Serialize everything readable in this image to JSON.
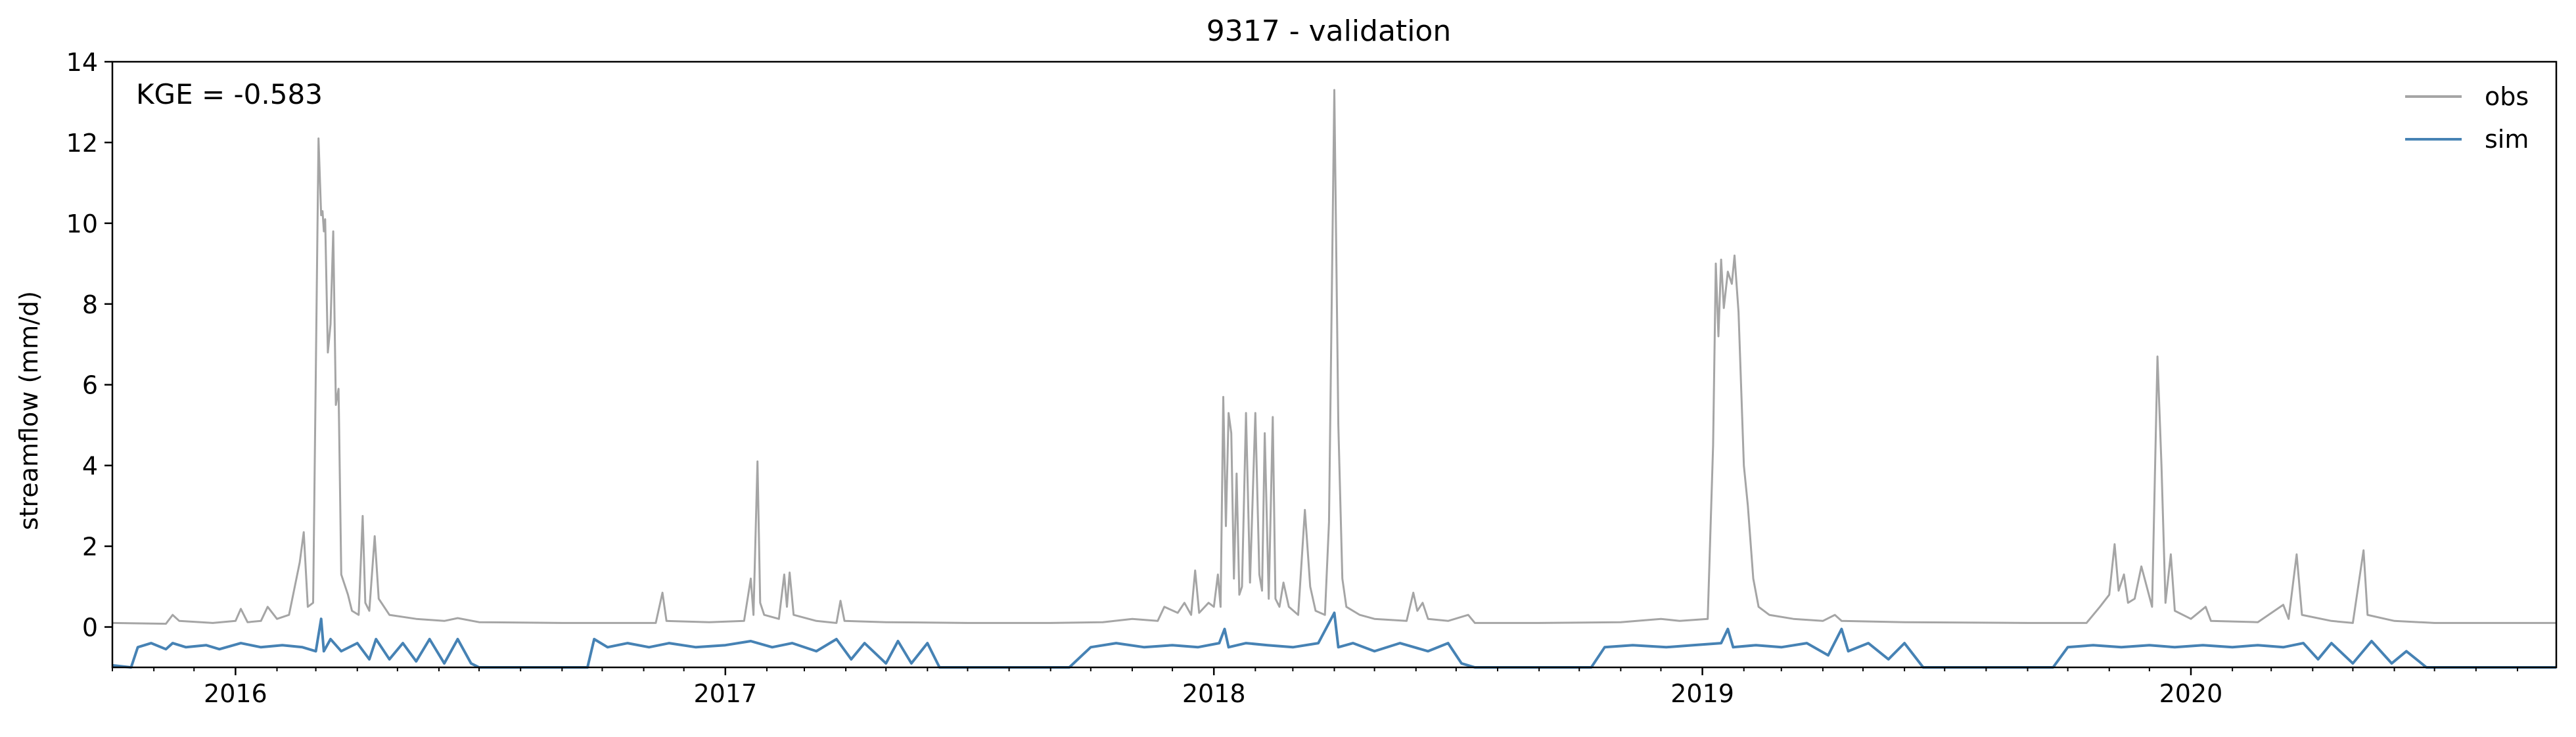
{
  "chart_data": {
    "type": "line",
    "title": "9317 - validation",
    "xlabel": "",
    "ylabel": "streamflow (mm/d)",
    "annotation": "KGE = -0.583",
    "xlim": [
      "2015-10-01",
      "2020-09-30"
    ],
    "ylim": [
      -1.0,
      14.0
    ],
    "x_ticks": [
      "2016",
      "2017",
      "2018",
      "2019",
      "2020"
    ],
    "y_ticks": [
      0,
      2,
      4,
      6,
      8,
      10,
      12,
      14
    ],
    "y_tick_labels": [
      "0",
      "2",
      "4",
      "6",
      "8",
      "10",
      "12",
      "14"
    ],
    "legend": {
      "location": "top-right"
    },
    "grid": false,
    "series": [
      {
        "name": "obs",
        "color": "#a5a5a5",
        "points": [
          [
            "2015-10-01",
            0.1
          ],
          [
            "2015-11-10",
            0.08
          ],
          [
            "2015-11-15",
            0.3
          ],
          [
            "2015-11-20",
            0.15
          ],
          [
            "2015-12-15",
            0.1
          ],
          [
            "2016-01-01",
            0.15
          ],
          [
            "2016-01-05",
            0.45
          ],
          [
            "2016-01-10",
            0.12
          ],
          [
            "2016-01-20",
            0.15
          ],
          [
            "2016-01-25",
            0.5
          ],
          [
            "2016-02-01",
            0.2
          ],
          [
            "2016-02-10",
            0.3
          ],
          [
            "2016-02-18",
            1.6
          ],
          [
            "2016-02-21",
            2.35
          ],
          [
            "2016-02-24",
            0.5
          ],
          [
            "2016-02-28",
            0.6
          ],
          [
            "2016-03-03",
            12.1
          ],
          [
            "2016-03-05",
            10.2
          ],
          [
            "2016-03-06",
            10.3
          ],
          [
            "2016-03-07",
            9.8
          ],
          [
            "2016-03-08",
            10.1
          ],
          [
            "2016-03-10",
            6.8
          ],
          [
            "2016-03-12",
            7.5
          ],
          [
            "2016-03-14",
            9.8
          ],
          [
            "2016-03-16",
            5.5
          ],
          [
            "2016-03-18",
            5.9
          ],
          [
            "2016-03-20",
            1.3
          ],
          [
            "2016-03-25",
            0.8
          ],
          [
            "2016-03-28",
            0.4
          ],
          [
            "2016-04-02",
            0.3
          ],
          [
            "2016-04-05",
            2.75
          ],
          [
            "2016-04-07",
            0.6
          ],
          [
            "2016-04-10",
            0.4
          ],
          [
            "2016-04-14",
            2.25
          ],
          [
            "2016-04-17",
            0.7
          ],
          [
            "2016-04-25",
            0.3
          ],
          [
            "2016-05-15",
            0.2
          ],
          [
            "2016-06-05",
            0.15
          ],
          [
            "2016-06-15",
            0.22
          ],
          [
            "2016-07-01",
            0.12
          ],
          [
            "2016-09-01",
            0.1
          ],
          [
            "2016-11-10",
            0.1
          ],
          [
            "2016-11-15",
            0.85
          ],
          [
            "2016-11-18",
            0.15
          ],
          [
            "2016-12-20",
            0.12
          ],
          [
            "2017-01-15",
            0.15
          ],
          [
            "2017-01-20",
            1.2
          ],
          [
            "2017-01-22",
            0.3
          ],
          [
            "2017-01-25",
            4.1
          ],
          [
            "2017-01-27",
            0.6
          ],
          [
            "2017-01-30",
            0.3
          ],
          [
            "2017-02-10",
            0.2
          ],
          [
            "2017-02-14",
            1.3
          ],
          [
            "2017-02-16",
            0.5
          ],
          [
            "2017-02-18",
            1.35
          ],
          [
            "2017-02-21",
            0.3
          ],
          [
            "2017-03-10",
            0.15
          ],
          [
            "2017-03-25",
            0.1
          ],
          [
            "2017-03-28",
            0.65
          ],
          [
            "2017-03-31",
            0.15
          ],
          [
            "2017-05-01",
            0.12
          ],
          [
            "2017-07-01",
            0.1
          ],
          [
            "2017-09-01",
            0.1
          ],
          [
            "2017-10-10",
            0.12
          ],
          [
            "2017-11-01",
            0.2
          ],
          [
            "2017-11-20",
            0.15
          ],
          [
            "2017-11-25",
            0.5
          ],
          [
            "2017-12-05",
            0.35
          ],
          [
            "2017-12-10",
            0.6
          ],
          [
            "2017-12-15",
            0.3
          ],
          [
            "2017-12-18",
            1.4
          ],
          [
            "2017-12-21",
            0.35
          ],
          [
            "2017-12-28",
            0.6
          ],
          [
            "2018-01-01",
            0.5
          ],
          [
            "2018-01-04",
            1.3
          ],
          [
            "2018-01-06",
            0.5
          ],
          [
            "2018-01-08",
            5.7
          ],
          [
            "2018-01-10",
            2.5
          ],
          [
            "2018-01-12",
            5.3
          ],
          [
            "2018-01-14",
            4.8
          ],
          [
            "2018-01-16",
            1.2
          ],
          [
            "2018-01-18",
            3.8
          ],
          [
            "2018-01-20",
            0.8
          ],
          [
            "2018-01-22",
            1.0
          ],
          [
            "2018-01-25",
            5.3
          ],
          [
            "2018-01-28",
            1.1
          ],
          [
            "2018-02-01",
            5.3
          ],
          [
            "2018-02-04",
            1.3
          ],
          [
            "2018-02-06",
            0.9
          ],
          [
            "2018-02-08",
            4.8
          ],
          [
            "2018-02-11",
            0.7
          ],
          [
            "2018-02-14",
            5.2
          ],
          [
            "2018-02-16",
            0.7
          ],
          [
            "2018-02-19",
            0.5
          ],
          [
            "2018-02-22",
            1.1
          ],
          [
            "2018-02-26",
            0.5
          ],
          [
            "2018-03-05",
            0.3
          ],
          [
            "2018-03-10",
            2.9
          ],
          [
            "2018-03-14",
            1.0
          ],
          [
            "2018-03-18",
            0.4
          ],
          [
            "2018-03-25",
            0.3
          ],
          [
            "2018-03-28",
            2.6
          ],
          [
            "2018-04-01",
            13.3
          ],
          [
            "2018-04-04",
            5.0
          ],
          [
            "2018-04-07",
            1.2
          ],
          [
            "2018-04-10",
            0.5
          ],
          [
            "2018-04-20",
            0.3
          ],
          [
            "2018-05-01",
            0.2
          ],
          [
            "2018-05-25",
            0.15
          ],
          [
            "2018-05-30",
            0.85
          ],
          [
            "2018-06-02",
            0.4
          ],
          [
            "2018-06-06",
            0.6
          ],
          [
            "2018-06-10",
            0.2
          ],
          [
            "2018-06-25",
            0.15
          ],
          [
            "2018-07-10",
            0.3
          ],
          [
            "2018-07-15",
            0.1
          ],
          [
            "2018-09-01",
            0.1
          ],
          [
            "2018-11-01",
            0.12
          ],
          [
            "2018-12-01",
            0.2
          ],
          [
            "2018-12-15",
            0.15
          ],
          [
            "2019-01-05",
            0.2
          ],
          [
            "2019-01-09",
            4.5
          ],
          [
            "2019-01-11",
            9.0
          ],
          [
            "2019-01-13",
            7.2
          ],
          [
            "2019-01-15",
            9.1
          ],
          [
            "2019-01-17",
            7.9
          ],
          [
            "2019-01-20",
            8.8
          ],
          [
            "2019-01-23",
            8.5
          ],
          [
            "2019-01-25",
            9.2
          ],
          [
            "2019-01-28",
            7.8
          ],
          [
            "2019-02-01",
            4.0
          ],
          [
            "2019-02-04",
            3.0
          ],
          [
            "2019-02-08",
            1.2
          ],
          [
            "2019-02-12",
            0.5
          ],
          [
            "2019-02-20",
            0.3
          ],
          [
            "2019-03-10",
            0.2
          ],
          [
            "2019-04-01",
            0.15
          ],
          [
            "2019-04-10",
            0.3
          ],
          [
            "2019-04-15",
            0.15
          ],
          [
            "2019-06-01",
            0.12
          ],
          [
            "2019-09-01",
            0.1
          ],
          [
            "2019-10-15",
            0.1
          ],
          [
            "2019-10-25",
            0.5
          ],
          [
            "2019-11-01",
            0.8
          ],
          [
            "2019-11-05",
            2.05
          ],
          [
            "2019-11-08",
            0.9
          ],
          [
            "2019-11-12",
            1.3
          ],
          [
            "2019-11-15",
            0.6
          ],
          [
            "2019-11-20",
            0.7
          ],
          [
            "2019-11-25",
            1.5
          ],
          [
            "2019-11-29",
            1.0
          ],
          [
            "2019-12-03",
            0.5
          ],
          [
            "2019-12-07",
            6.7
          ],
          [
            "2019-12-10",
            4.0
          ],
          [
            "2019-12-13",
            0.6
          ],
          [
            "2019-12-17",
            1.8
          ],
          [
            "2019-12-20",
            0.4
          ],
          [
            "2020-01-01",
            0.2
          ],
          [
            "2020-01-12",
            0.5
          ],
          [
            "2020-01-16",
            0.15
          ],
          [
            "2020-02-20",
            0.12
          ],
          [
            "2020-03-10",
            0.55
          ],
          [
            "2020-03-14",
            0.2
          ],
          [
            "2020-03-20",
            1.8
          ],
          [
            "2020-03-24",
            0.3
          ],
          [
            "2020-04-15",
            0.15
          ],
          [
            "2020-05-01",
            0.1
          ],
          [
            "2020-05-09",
            1.9
          ],
          [
            "2020-05-12",
            0.3
          ],
          [
            "2020-06-01",
            0.15
          ],
          [
            "2020-07-01",
            0.1
          ],
          [
            "2020-09-30",
            0.1
          ]
        ]
      },
      {
        "name": "sim",
        "color": "#4682b4",
        "points": [
          [
            "2015-10-01",
            -0.95
          ],
          [
            "2015-10-15",
            -1.0
          ],
          [
            "2015-10-20",
            -0.5
          ],
          [
            "2015-10-30",
            -0.4
          ],
          [
            "2015-11-10",
            -0.55
          ],
          [
            "2015-11-15",
            -0.4
          ],
          [
            "2015-11-25",
            -0.5
          ],
          [
            "2015-12-10",
            -0.45
          ],
          [
            "2015-12-20",
            -0.55
          ],
          [
            "2016-01-05",
            -0.4
          ],
          [
            "2016-01-20",
            -0.5
          ],
          [
            "2016-02-05",
            -0.45
          ],
          [
            "2016-02-20",
            -0.5
          ],
          [
            "2016-03-01",
            -0.6
          ],
          [
            "2016-03-05",
            0.2
          ],
          [
            "2016-03-07",
            -0.6
          ],
          [
            "2016-03-12",
            -0.3
          ],
          [
            "2016-03-20",
            -0.6
          ],
          [
            "2016-04-01",
            -0.4
          ],
          [
            "2016-04-10",
            -0.8
          ],
          [
            "2016-04-15",
            -0.3
          ],
          [
            "2016-04-25",
            -0.8
          ],
          [
            "2016-05-05",
            -0.4
          ],
          [
            "2016-05-15",
            -0.85
          ],
          [
            "2016-05-25",
            -0.3
          ],
          [
            "2016-06-05",
            -0.9
          ],
          [
            "2016-06-15",
            -0.3
          ],
          [
            "2016-06-25",
            -0.9
          ],
          [
            "2016-07-01",
            -1.0
          ],
          [
            "2016-09-20",
            -1.0
          ],
          [
            "2016-09-25",
            -0.3
          ],
          [
            "2016-10-05",
            -0.5
          ],
          [
            "2016-10-20",
            -0.4
          ],
          [
            "2016-11-05",
            -0.5
          ],
          [
            "2016-11-20",
            -0.4
          ],
          [
            "2016-12-10",
            -0.5
          ],
          [
            "2017-01-01",
            -0.45
          ],
          [
            "2017-01-20",
            -0.35
          ],
          [
            "2017-02-05",
            -0.5
          ],
          [
            "2017-02-20",
            -0.4
          ],
          [
            "2017-03-10",
            -0.6
          ],
          [
            "2017-03-25",
            -0.3
          ],
          [
            "2017-04-05",
            -0.8
          ],
          [
            "2017-04-15",
            -0.4
          ],
          [
            "2017-05-01",
            -0.9
          ],
          [
            "2017-05-10",
            -0.35
          ],
          [
            "2017-05-20",
            -0.9
          ],
          [
            "2017-06-01",
            -0.4
          ],
          [
            "2017-06-10",
            -1.0
          ],
          [
            "2017-09-15",
            -1.0
          ],
          [
            "2017-10-01",
            -0.5
          ],
          [
            "2017-10-20",
            -0.4
          ],
          [
            "2017-11-10",
            -0.5
          ],
          [
            "2017-12-01",
            -0.45
          ],
          [
            "2017-12-20",
            -0.5
          ],
          [
            "2018-01-05",
            -0.4
          ],
          [
            "2018-01-09",
            -0.05
          ],
          [
            "2018-01-12",
            -0.5
          ],
          [
            "2018-01-25",
            -0.4
          ],
          [
            "2018-02-10",
            -0.45
          ],
          [
            "2018-03-01",
            -0.5
          ],
          [
            "2018-03-20",
            -0.4
          ],
          [
            "2018-04-01",
            0.35
          ],
          [
            "2018-04-04",
            -0.5
          ],
          [
            "2018-04-15",
            -0.4
          ],
          [
            "2018-05-01",
            -0.6
          ],
          [
            "2018-05-20",
            -0.4
          ],
          [
            "2018-06-10",
            -0.6
          ],
          [
            "2018-06-25",
            -0.4
          ],
          [
            "2018-07-05",
            -0.9
          ],
          [
            "2018-07-15",
            -1.0
          ],
          [
            "2018-10-10",
            -1.0
          ],
          [
            "2018-10-20",
            -0.5
          ],
          [
            "2018-11-10",
            -0.45
          ],
          [
            "2018-12-05",
            -0.5
          ],
          [
            "2018-12-25",
            -0.45
          ],
          [
            "2019-01-15",
            -0.4
          ],
          [
            "2019-01-20",
            -0.05
          ],
          [
            "2019-01-24",
            -0.5
          ],
          [
            "2019-02-10",
            -0.45
          ],
          [
            "2019-03-01",
            -0.5
          ],
          [
            "2019-03-20",
            -0.4
          ],
          [
            "2019-04-05",
            -0.7
          ],
          [
            "2019-04-15",
            -0.05
          ],
          [
            "2019-04-20",
            -0.6
          ],
          [
            "2019-05-05",
            -0.4
          ],
          [
            "2019-05-20",
            -0.8
          ],
          [
            "2019-06-01",
            -0.4
          ],
          [
            "2019-06-15",
            -1.0
          ],
          [
            "2019-09-20",
            -1.0
          ],
          [
            "2019-10-01",
            -0.5
          ],
          [
            "2019-10-20",
            -0.45
          ],
          [
            "2019-11-10",
            -0.5
          ],
          [
            "2019-12-01",
            -0.45
          ],
          [
            "2019-12-20",
            -0.5
          ],
          [
            "2020-01-10",
            -0.45
          ],
          [
            "2020-02-01",
            -0.5
          ],
          [
            "2020-02-20",
            -0.45
          ],
          [
            "2020-03-10",
            -0.5
          ],
          [
            "2020-03-25",
            -0.4
          ],
          [
            "2020-04-05",
            -0.8
          ],
          [
            "2020-04-15",
            -0.4
          ],
          [
            "2020-05-01",
            -0.9
          ],
          [
            "2020-05-15",
            -0.35
          ],
          [
            "2020-05-30",
            -0.9
          ],
          [
            "2020-06-10",
            -0.6
          ],
          [
            "2020-06-25",
            -1.0
          ],
          [
            "2020-09-30",
            -1.0
          ]
        ]
      }
    ]
  }
}
